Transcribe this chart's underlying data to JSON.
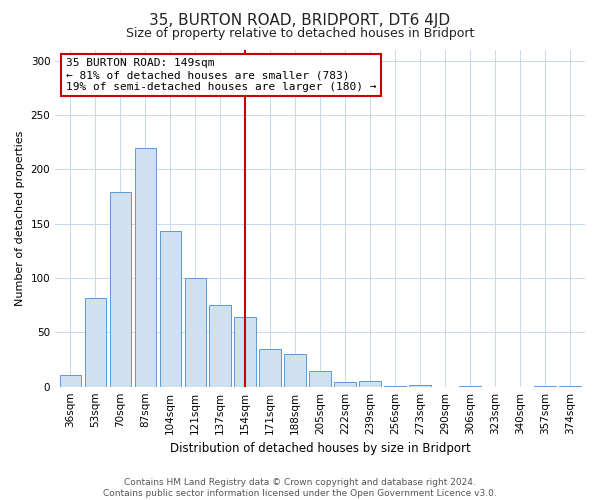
{
  "title": "35, BURTON ROAD, BRIDPORT, DT6 4JD",
  "subtitle": "Size of property relative to detached houses in Bridport",
  "xlabel": "Distribution of detached houses by size in Bridport",
  "ylabel": "Number of detached properties",
  "categories": [
    "36sqm",
    "53sqm",
    "70sqm",
    "87sqm",
    "104sqm",
    "121sqm",
    "137sqm",
    "154sqm",
    "171sqm",
    "188sqm",
    "205sqm",
    "222sqm",
    "239sqm",
    "256sqm",
    "273sqm",
    "290sqm",
    "306sqm",
    "323sqm",
    "340sqm",
    "357sqm",
    "374sqm"
  ],
  "values": [
    11,
    82,
    179,
    220,
    143,
    100,
    75,
    64,
    35,
    30,
    14,
    4,
    5,
    1,
    2,
    0,
    1,
    0,
    0,
    1,
    1
  ],
  "bar_color": "#cfe0f1",
  "bar_edge_color": "#5b9bd5",
  "reference_line_x": 7,
  "ylim": [
    0,
    310
  ],
  "yticks": [
    0,
    50,
    100,
    150,
    200,
    250,
    300
  ],
  "annotation_title": "35 BURTON ROAD: 149sqm",
  "annotation_line1": "← 81% of detached houses are smaller (783)",
  "annotation_line2": "19% of semi-detached houses are larger (180) →",
  "footer_line1": "Contains HM Land Registry data © Crown copyright and database right 2024.",
  "footer_line2": "Contains public sector information licensed under the Open Government Licence v3.0.",
  "background_color": "#ffffff",
  "annotation_box_edge": "#cc0000",
  "ref_line_color": "#cc0000",
  "grid_color": "#c8d8e8",
  "title_fontsize": 11,
  "subtitle_fontsize": 9,
  "ylabel_fontsize": 8,
  "xlabel_fontsize": 8.5,
  "tick_fontsize": 7.5,
  "annotation_fontsize": 8,
  "footer_fontsize": 6.5
}
